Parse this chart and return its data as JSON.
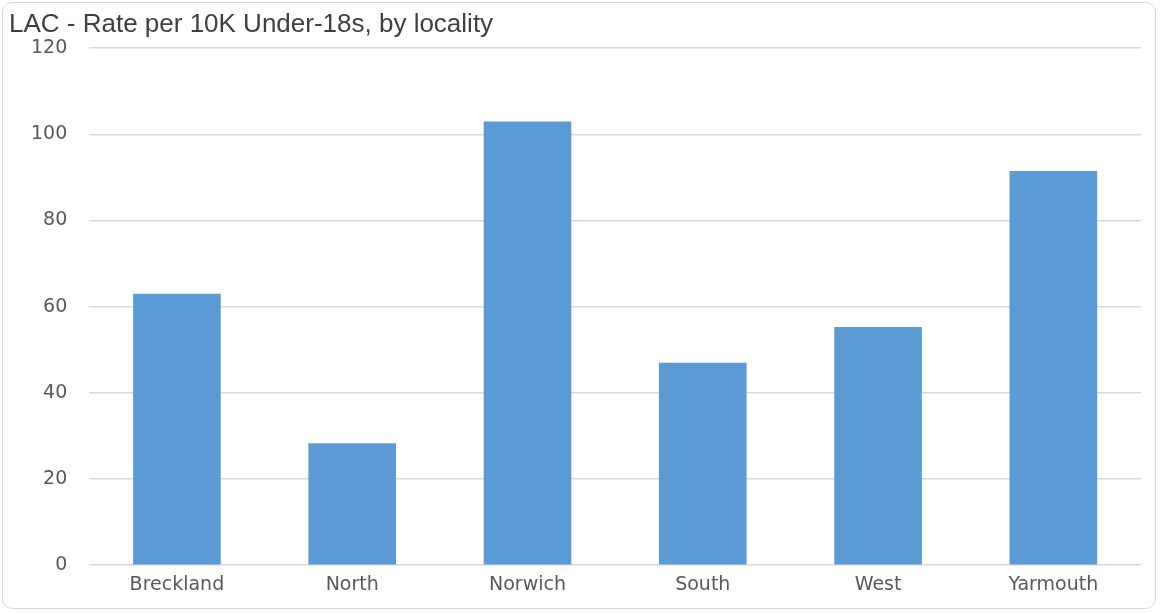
{
  "chart_data": {
    "type": "bar",
    "title": "LAC - Rate per 10K Under-18s, by locality",
    "categories": [
      "Breckland",
      "North",
      "Norwich",
      "South",
      "West",
      "Yarmouth"
    ],
    "values": [
      63,
      28.3,
      103,
      47,
      55.3,
      91.5
    ],
    "color": "#5b9bd5",
    "ylim": [
      0,
      120
    ],
    "yticks": [
      0,
      20,
      40,
      60,
      80,
      100,
      120
    ],
    "grid": "y"
  }
}
